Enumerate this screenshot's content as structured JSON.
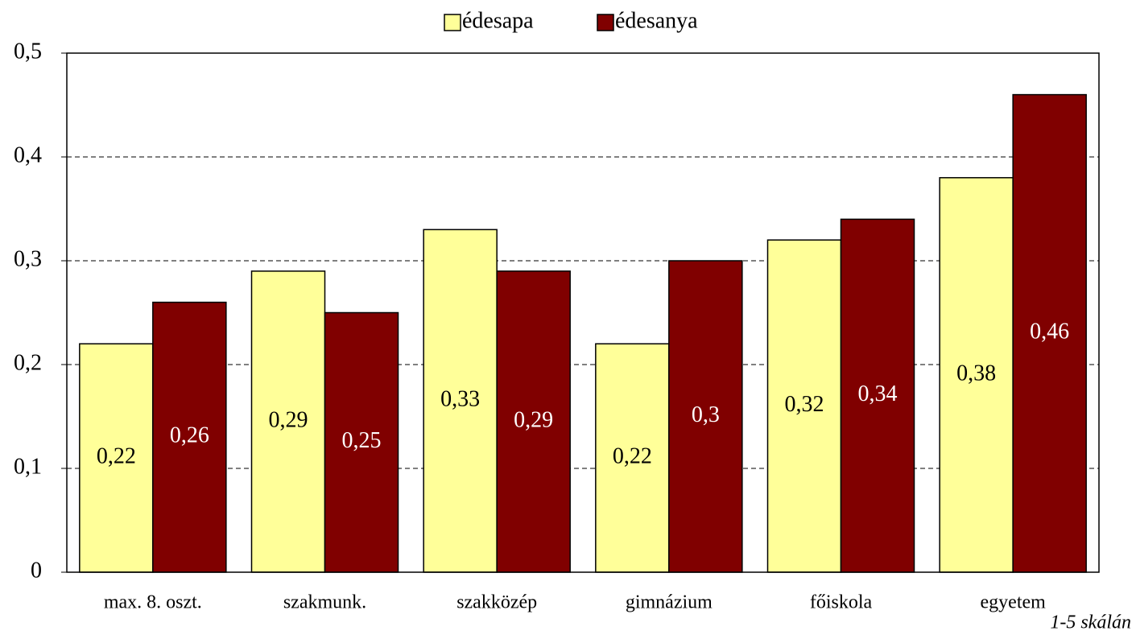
{
  "chart_data": {
    "type": "bar",
    "categories": [
      "max. 8. oszt.",
      "szakmunk.",
      "szakközép",
      "gimnázium",
      "főiskola",
      "egyetem"
    ],
    "series": [
      {
        "name": "édesapa",
        "color": "#ffff99",
        "values": [
          0.22,
          0.29,
          0.33,
          0.22,
          0.32,
          0.38
        ],
        "value_labels": [
          "0,22",
          "0,29",
          "0,33",
          "0,22",
          "0,32",
          "0,38"
        ]
      },
      {
        "name": "édesanya",
        "color": "#800000",
        "values": [
          0.26,
          0.25,
          0.29,
          0.3,
          0.34,
          0.46
        ],
        "value_labels": [
          "0,26",
          "0,25",
          "0,29",
          "0,3",
          "0,34",
          "0,46"
        ]
      }
    ],
    "ylim": [
      0,
      0.5
    ],
    "yticks": [
      0,
      {
        "value": 0.1,
        "label": "0,1"
      },
      {
        "value": 0.2,
        "label": "0,2"
      },
      {
        "value": 0.3,
        "label": "0,3"
      },
      {
        "value": 0.4,
        "label": "0,4"
      },
      {
        "value": 0.5,
        "label": "0,5"
      }
    ],
    "grid": true,
    "legend": "top",
    "annotation": "1-5 skálán"
  }
}
